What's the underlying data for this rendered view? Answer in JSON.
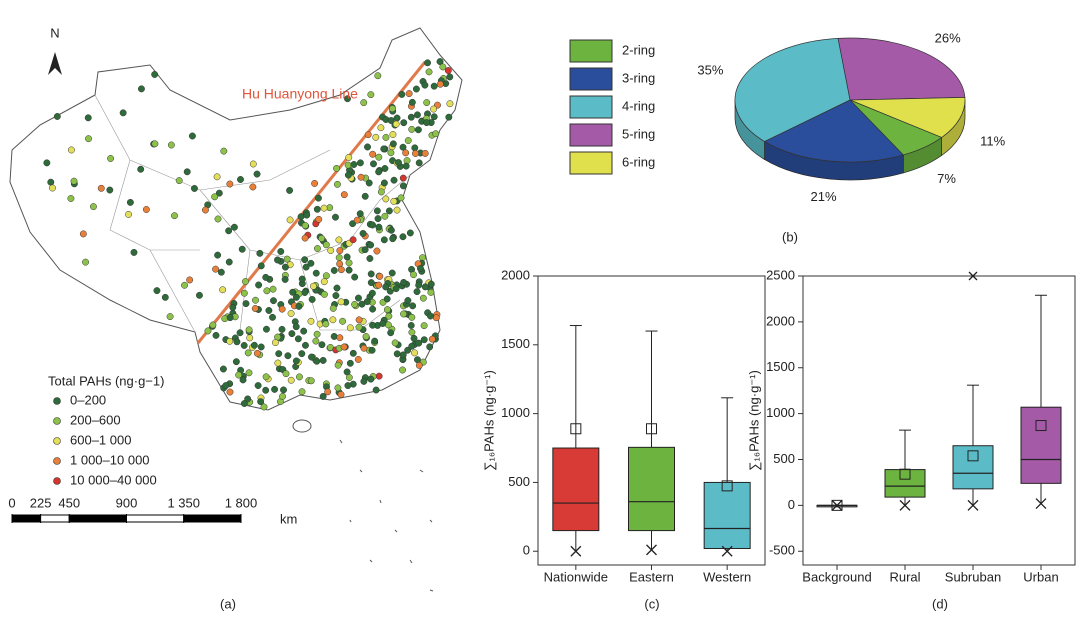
{
  "chart_data": [
    {
      "type": "map",
      "north": "N",
      "annotation": "Hu Huanyong Line",
      "legend_title": "Total PAHs (ng·g−1)",
      "legend": [
        {
          "label": "0–200",
          "color": "#2f6b3a"
        },
        {
          "label": "200–600",
          "color": "#8cc24a"
        },
        {
          "label": "600–1 000",
          "color": "#e3df5a"
        },
        {
          "label": "1 000–10 000",
          "color": "#e8803a"
        },
        {
          "label": "10 000–40 000",
          "color": "#d6352e"
        }
      ],
      "scale": {
        "xlim": [
          0,
          1800
        ],
        "xticks": [
          0,
          225,
          450,
          900,
          {
            "value": 1350,
            "label": "1 350"
          },
          {
            "value": 1800,
            "label": "1 800"
          }
        ],
        "unit": "km"
      },
      "caption": "(a)"
    },
    {
      "type": "pie",
      "caption": "(b)",
      "categories": [
        "2-ring",
        "3-ring",
        "4-ring",
        "5-ring",
        "6-ring"
      ],
      "values": [
        7,
        21,
        35,
        26,
        11
      ],
      "value_labels": [
        "7%",
        "21%",
        "35%",
        "26%",
        "11%"
      ],
      "colors": [
        "#6cb33f",
        "#2a4e9c",
        "#5bbcc8",
        "#a45aa7",
        "#dfe04c"
      ]
    },
    {
      "type": "box",
      "caption": "(c)",
      "ylabel": "∑₁₆PAHs (ng·g⁻¹)",
      "categories": [
        "Nationwide",
        "Eastern",
        "Western"
      ],
      "colors": [
        "#d83a35",
        "#6cb33f",
        "#5bbcc8"
      ],
      "ylim": [
        -100,
        2000
      ],
      "yticks": [
        0,
        500,
        1000,
        1500,
        2000
      ],
      "boxes": [
        {
          "whisker_low": 0,
          "q1": 150,
          "median": 350,
          "q3": 750,
          "whisker_high": 1640,
          "mean": 890,
          "min_marker": 0
        },
        {
          "whisker_low": 10,
          "q1": 150,
          "median": 360,
          "q3": 755,
          "whisker_high": 1600,
          "mean": 890,
          "min_marker": 10
        },
        {
          "whisker_low": 0,
          "q1": 20,
          "median": 165,
          "q3": 500,
          "whisker_high": 1115,
          "mean": 475,
          "min_marker": 0
        }
      ]
    },
    {
      "type": "box",
      "caption": "(d)",
      "ylabel": "∑₁₆PAHs (ng·g⁻¹)",
      "categories": [
        "Background",
        "Rural",
        "Subruban",
        "Urban"
      ],
      "colors": [
        "#9aa3ad",
        "#6cb33f",
        "#5bbcc8",
        "#a45aa7"
      ],
      "ylim": [
        -650,
        2500
      ],
      "yticks": [
        -500,
        0,
        500,
        1000,
        1500,
        2000,
        2500
      ],
      "boxes": [
        {
          "whisker_low": 0,
          "q1": 0,
          "median": 0,
          "q3": 0,
          "whisker_high": 0,
          "mean": 0,
          "min_marker": 0
        },
        {
          "whisker_low": 0,
          "q1": 90,
          "median": 210,
          "q3": 390,
          "whisker_high": 820,
          "mean": 340,
          "min_marker": 0
        },
        {
          "whisker_low": 0,
          "q1": 180,
          "median": 350,
          "q3": 650,
          "whisker_high": 1310,
          "mean": 540,
          "min_marker": 0,
          "outliers": [
            2500
          ]
        },
        {
          "whisker_low": 20,
          "q1": 240,
          "median": 500,
          "q3": 1070,
          "whisker_high": 2290,
          "mean": 870,
          "min_marker": 20
        }
      ]
    }
  ]
}
